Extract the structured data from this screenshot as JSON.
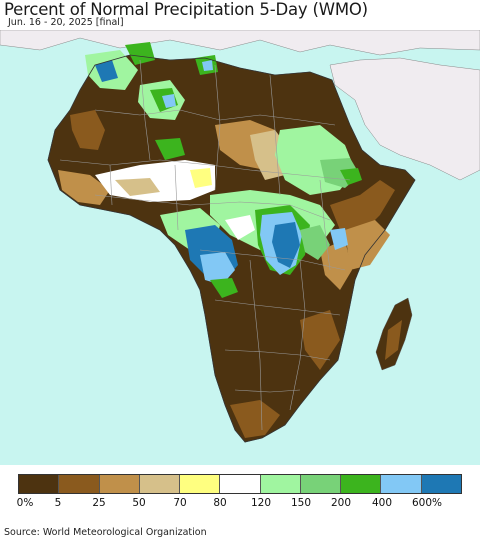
{
  "header": {
    "title": "Percent of Normal Precipitation 5-Day (WMO)",
    "subtitle": "Jun. 16 - 20, 2025 [final]"
  },
  "legend": {
    "colors": [
      "#4d3310",
      "#8a5a1e",
      "#c0904a",
      "#d6c08a",
      "#ffff80",
      "#ffffff",
      "#a0f5a0",
      "#78d278",
      "#3cb41e",
      "#82c8f5",
      "#1e78b4"
    ],
    "tick_labels": [
      "0%",
      "5",
      "25",
      "50",
      "70",
      "80",
      "120",
      "150",
      "200",
      "400",
      "600%"
    ]
  },
  "map": {
    "ocean_color": "#c8f5f0",
    "outside_land_color": "#f0ecf0"
  },
  "footer": {
    "source": "Source: World Meteorological Organization"
  }
}
